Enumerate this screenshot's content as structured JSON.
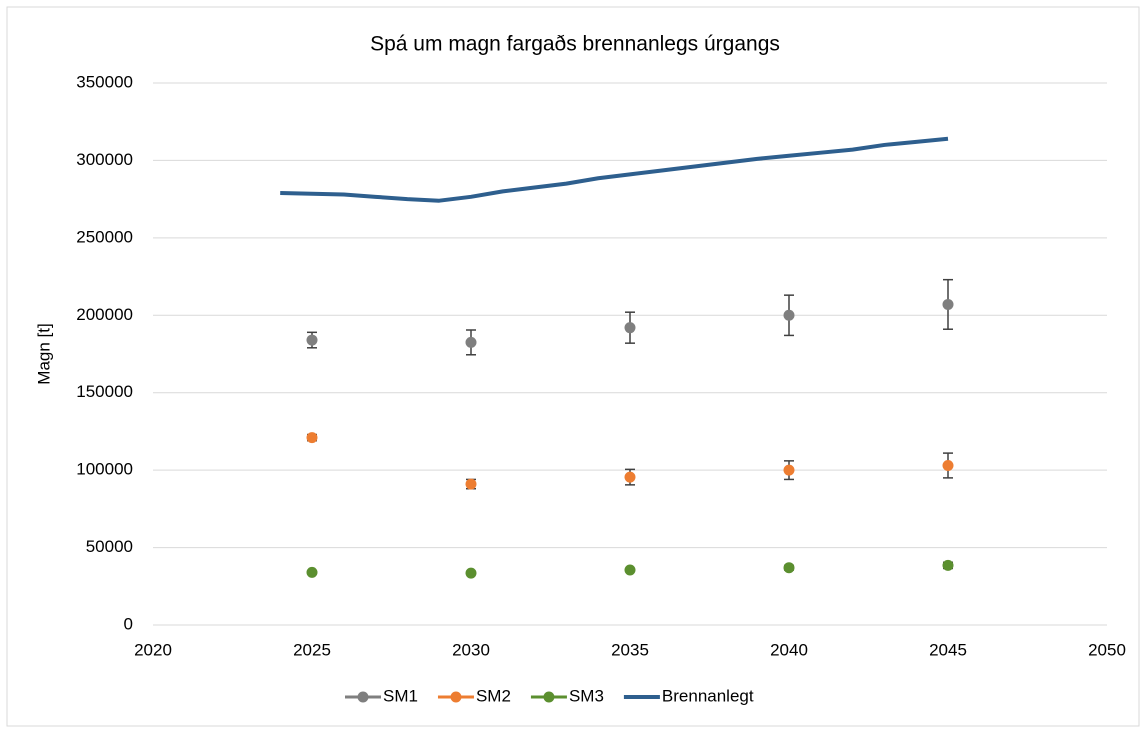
{
  "chart_data": {
    "type": "scatter",
    "title": "Spá um magn fargaðs brennanlegs úrgangs",
    "ylabel": "Magn [t]",
    "xlim": [
      2020,
      2050
    ],
    "xticks": [
      2020,
      2025,
      2030,
      2035,
      2040,
      2045,
      2050
    ],
    "ylim": [
      0,
      350000
    ],
    "yticks": [
      0,
      50000,
      100000,
      150000,
      200000,
      250000,
      300000,
      350000
    ],
    "grid": true,
    "legend": "bottom",
    "series": [
      {
        "name": "SM1",
        "color": "#7f7f7f",
        "style": "markers",
        "x": [
          2025,
          2030,
          2035,
          2040,
          2045
        ],
        "values": [
          184000,
          182500,
          192000,
          200000,
          207000
        ],
        "errors": [
          5000,
          8000,
          10000,
          13000,
          16000
        ]
      },
      {
        "name": "SM2",
        "color": "#ed7d31",
        "style": "markers",
        "x": [
          2025,
          2030,
          2035,
          2040,
          2045
        ],
        "values": [
          121000,
          91000,
          95500,
          100000,
          103000
        ],
        "errors": [
          2000,
          3000,
          5000,
          6000,
          8000
        ]
      },
      {
        "name": "SM3",
        "color": "#5b8f2f",
        "style": "markers",
        "x": [
          2025,
          2030,
          2035,
          2040,
          2045
        ],
        "values": [
          34000,
          33500,
          35500,
          37000,
          38500
        ],
        "errors": [
          1000,
          1000,
          1000,
          1500,
          2000
        ]
      },
      {
        "name": "Brennanlegt",
        "color": "#2e5f8e",
        "style": "line",
        "x": [
          2024,
          2025,
          2026,
          2027,
          2028,
          2029,
          2030,
          2031,
          2032,
          2033,
          2034,
          2035,
          2036,
          2037,
          2038,
          2039,
          2040,
          2041,
          2042,
          2043,
          2044,
          2045
        ],
        "values": [
          279000,
          278500,
          278000,
          276500,
          275000,
          274000,
          276500,
          280000,
          282500,
          285000,
          288500,
          291000,
          293500,
          296000,
          298500,
          301000,
          303000,
          305000,
          307000,
          310000,
          312000,
          314000
        ]
      }
    ]
  }
}
